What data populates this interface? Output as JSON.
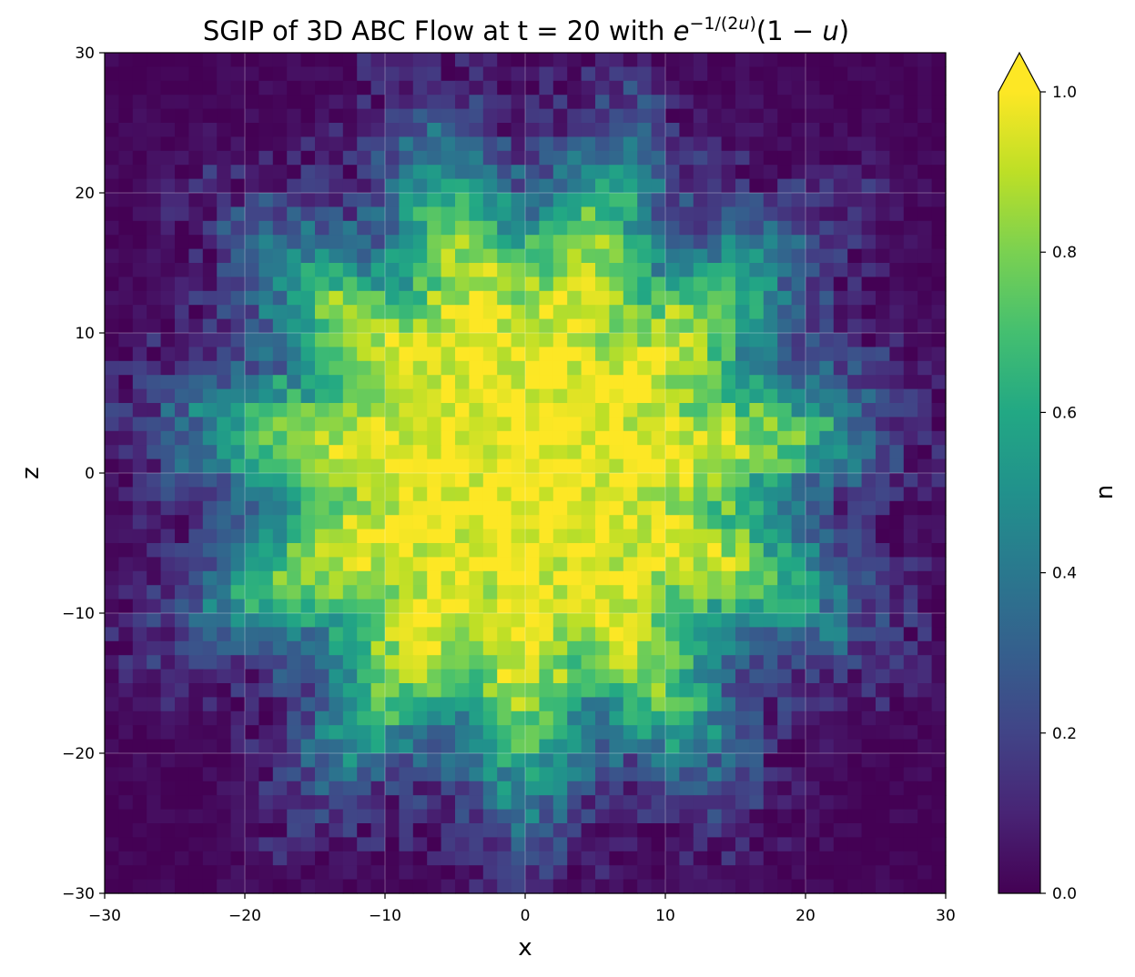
{
  "chart_data": {
    "type": "heatmap",
    "title_prefix": "SGIP of 3D ABC Flow at t = 20 with ",
    "title_math": "e^{-1/(2u)}(1 - u)",
    "xlabel": "x",
    "ylabel": "z",
    "xlim": [
      -30,
      30
    ],
    "ylim": [
      -30,
      30
    ],
    "xticks": [
      -30,
      -20,
      -10,
      0,
      10,
      20,
      30
    ],
    "yticks": [
      -30,
      -20,
      -10,
      0,
      10,
      20,
      30
    ],
    "xtick_labels": [
      "−30",
      "−20",
      "−10",
      "0",
      "10",
      "20",
      "30"
    ],
    "ytick_labels": [
      "−30",
      "−20",
      "−10",
      "0",
      "10",
      "20",
      "30"
    ],
    "grid": true,
    "colormap": "viridis",
    "grid_cells": 60,
    "field": {
      "description_visible": "noisy radially symmetric blob",
      "center": [
        0,
        0
      ],
      "plateau_radius": 10,
      "edge_radius": 20,
      "edge_width": 3.5,
      "fringe_amplitude": 2.5,
      "fringe_lobes": 11,
      "noise": 0.12
    },
    "colorbar": {
      "label": "u",
      "min": 0.0,
      "max": 1.0,
      "ticks": [
        0.0,
        0.2,
        0.4,
        0.6,
        0.8,
        1.0
      ],
      "tick_labels": [
        "0.0",
        "0.2",
        "0.4",
        "0.6",
        "0.8",
        "1.0"
      ],
      "extend": "max"
    }
  }
}
